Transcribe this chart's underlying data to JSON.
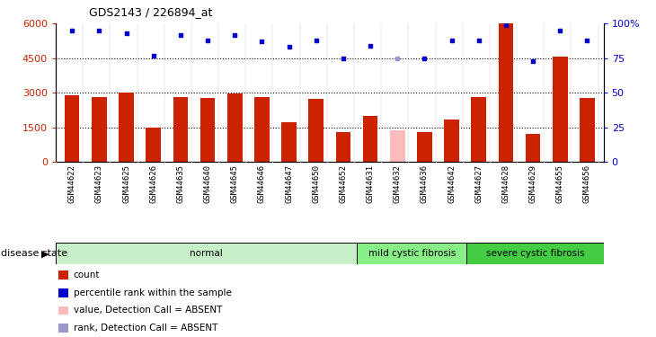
{
  "title": "GDS2143 / 226894_at",
  "samples": [
    "GSM44622",
    "GSM44623",
    "GSM44625",
    "GSM44626",
    "GSM44635",
    "GSM44640",
    "GSM44645",
    "GSM44646",
    "GSM44647",
    "GSM44650",
    "GSM44652",
    "GSM44631",
    "GSM44632",
    "GSM44636",
    "GSM44642",
    "GSM44627",
    "GSM44628",
    "GSM44629",
    "GSM44655",
    "GSM44656"
  ],
  "count_values": [
    2900,
    2820,
    3020,
    1500,
    2820,
    2780,
    2980,
    2820,
    1700,
    2750,
    1300,
    2000,
    1350,
    1300,
    1850,
    2820,
    6000,
    1200,
    4550,
    2780
  ],
  "count_absent": [
    false,
    false,
    false,
    false,
    false,
    false,
    false,
    false,
    false,
    false,
    false,
    false,
    true,
    false,
    false,
    false,
    false,
    false,
    false,
    false
  ],
  "rank_values": [
    95,
    95,
    93,
    77,
    92,
    88,
    92,
    87,
    83,
    88,
    75,
    84,
    75,
    75,
    88,
    88,
    99,
    73,
    95,
    88
  ],
  "rank_absent": [
    false,
    false,
    false,
    false,
    false,
    false,
    false,
    false,
    false,
    false,
    false,
    false,
    true,
    false,
    false,
    false,
    false,
    false,
    false,
    false
  ],
  "groups": [
    "normal",
    "normal",
    "normal",
    "normal",
    "normal",
    "normal",
    "normal",
    "normal",
    "normal",
    "normal",
    "normal",
    "mild cystic fibrosis",
    "mild cystic fibrosis",
    "mild cystic fibrosis",
    "mild cystic fibrosis",
    "severe cystic fibrosis",
    "severe cystic fibrosis",
    "severe cystic fibrosis",
    "severe cystic fibrosis",
    "severe cystic fibrosis"
  ],
  "group_spans": [
    {
      "name": "normal",
      "start": 0,
      "end": 11,
      "color": "#c8f0c8"
    },
    {
      "name": "mild cystic fibrosis",
      "start": 11,
      "end": 15,
      "color": "#88ee88"
    },
    {
      "name": "severe cystic fibrosis",
      "start": 15,
      "end": 20,
      "color": "#44cc44"
    }
  ],
  "ylim_left": [
    0,
    6000
  ],
  "ylim_right": [
    0,
    100
  ],
  "yticks_left": [
    0,
    1500,
    3000,
    4500,
    6000
  ],
  "yticks_right": [
    0,
    25,
    50,
    75,
    100
  ],
  "bar_color": "#cc2200",
  "bar_absent_color": "#ffbbbb",
  "rank_color": "#0000cc",
  "rank_absent_color": "#9999cc",
  "bar_width": 0.55,
  "bg_color": "#d8d8d8",
  "plot_bg": "#ffffff"
}
